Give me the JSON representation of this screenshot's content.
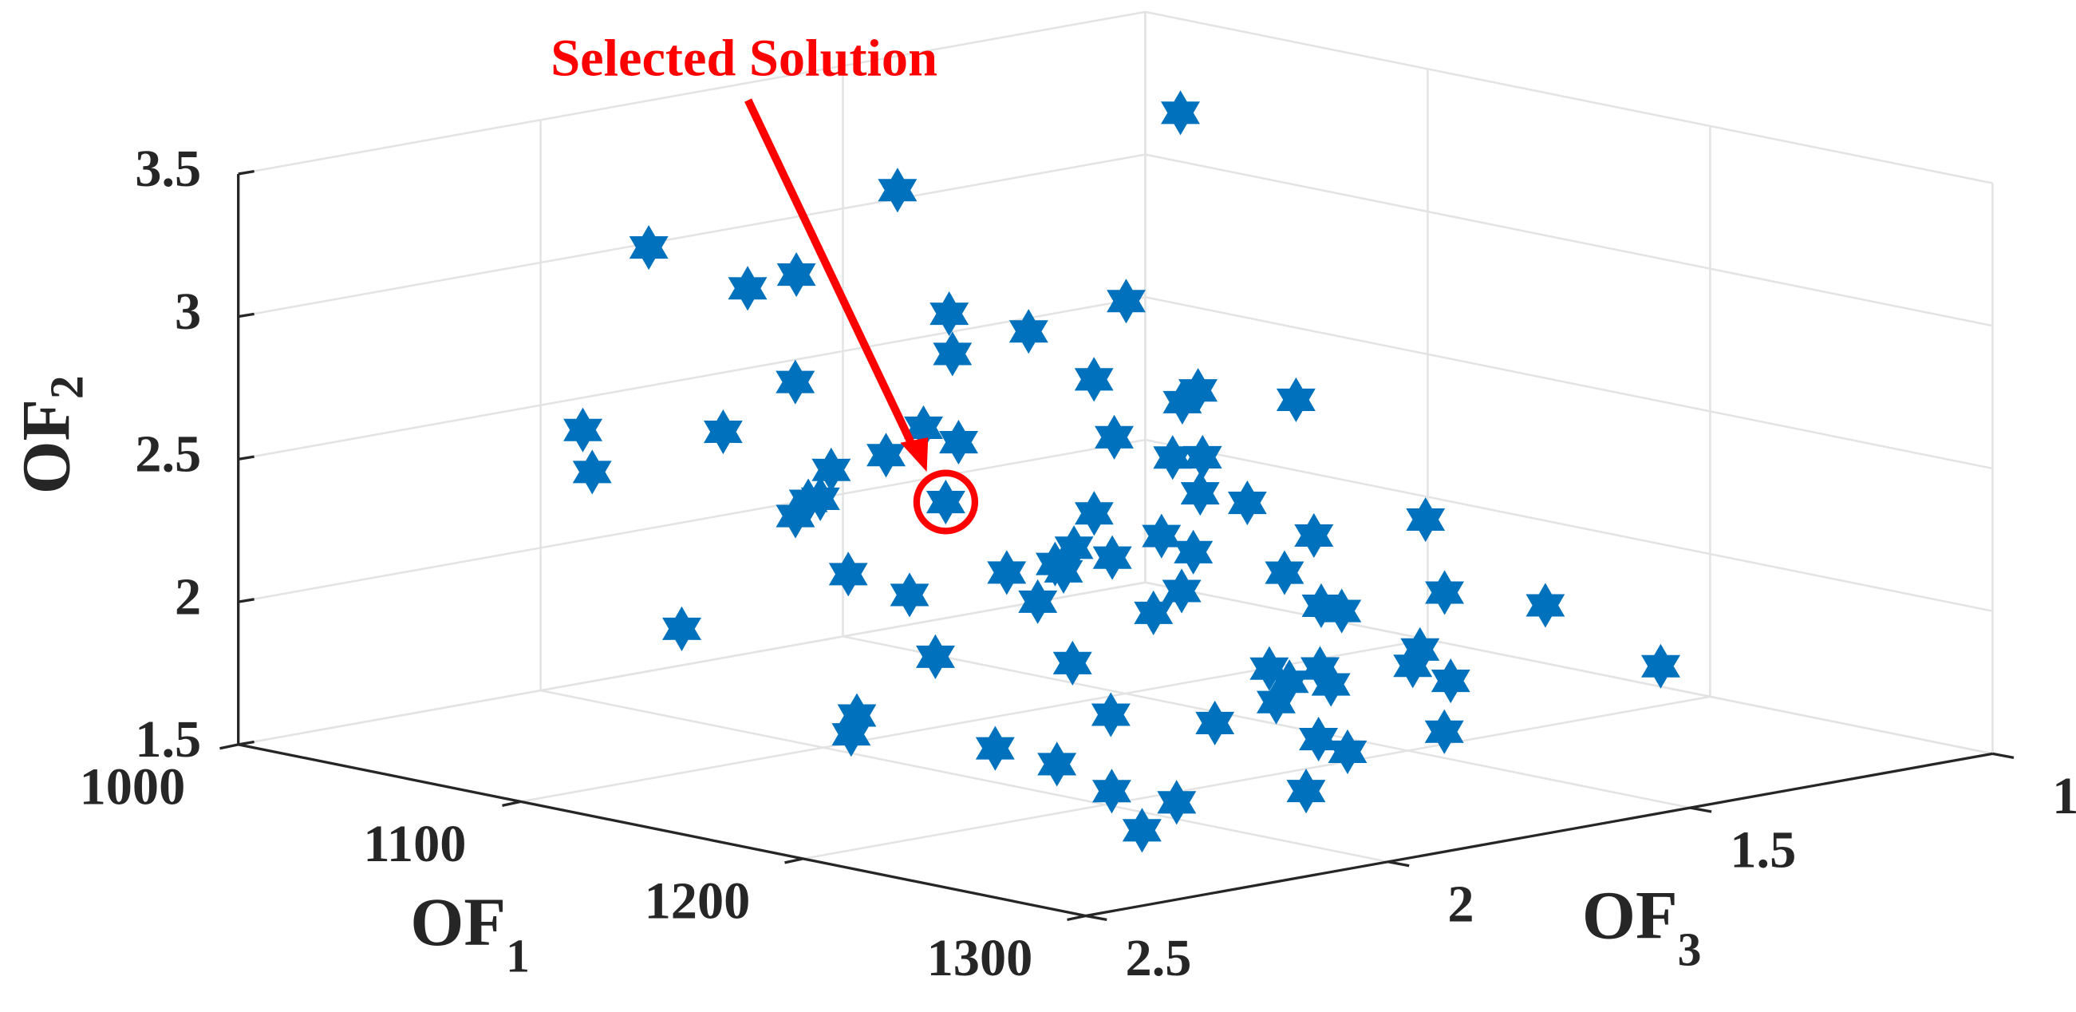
{
  "chart_data": {
    "type": "scatter3d",
    "xlabel": {
      "main": "OF",
      "sub": "1"
    },
    "ylabel": {
      "main": "OF",
      "sub": "2"
    },
    "zlabel": {
      "main": "OF",
      "sub": "3"
    },
    "xlim": [
      1000,
      1300
    ],
    "xticks": [
      1000,
      1100,
      1200,
      1300
    ],
    "ylim": [
      1.5,
      3.5
    ],
    "yticks": [
      1.5,
      2,
      2.5,
      3,
      3.5
    ],
    "zlim": [
      1,
      2.5
    ],
    "zticks": [
      1,
      1.5,
      2,
      2.5
    ],
    "grid": true,
    "color": "#0072bd",
    "annotation": {
      "text": "Selected Solution",
      "color": "#ff0000",
      "x": 1152,
      "y": 2.48,
      "z": 2.04
    },
    "x": [
      1036,
      1045,
      1049,
      1067,
      1069,
      1089,
      1096,
      1100,
      1103,
      1103,
      1121,
      1130,
      1133,
      1139,
      1107,
      1116,
      1127,
      1133,
      1141,
      1121,
      1135,
      1133,
      1151,
      1153,
      1144,
      1144,
      1152,
      1165,
      1171,
      1148,
      1166,
      1187,
      1177,
      1186,
      1184,
      1176,
      1181,
      1180,
      1180,
      1183,
      1171,
      1197,
      1182,
      1191,
      1197,
      1213,
      1202,
      1210,
      1213,
      1223,
      1157,
      1204,
      1214,
      1230,
      1236,
      1251,
      1228,
      1231,
      1233,
      1237,
      1243,
      1239,
      1234,
      1243,
      1219,
      1217,
      1260,
      1238,
      1254,
      1260,
      1247,
      1260,
      1268,
      1271,
      1275
    ],
    "y": [
      3.26,
      3.2,
      3.17,
      3.05,
      3.04,
      2.9,
      2.86,
      2.83,
      2.81,
      2.81,
      2.7,
      2.63,
      2.61,
      2.57,
      2.79,
      2.73,
      2.66,
      2.61,
      2.56,
      2.69,
      2.6,
      2.61,
      2.49,
      2.48,
      2.54,
      2.54,
      2.48,
      2.4,
      2.36,
      2.51,
      2.4,
      2.25,
      2.32,
      2.26,
      2.27,
      2.33,
      2.29,
      2.3,
      2.3,
      2.28,
      2.36,
      2.19,
      2.29,
      2.22,
      2.19,
      2.08,
      2.15,
      2.1,
      2.08,
      2.01,
      2.22,
      2.14,
      2.07,
      1.96,
      1.93,
      1.83,
      1.98,
      1.96,
      1.94,
      1.92,
      1.88,
      1.9,
      1.94,
      1.88,
      2.04,
      1.97,
      1.77,
      1.91,
      1.8,
      1.76,
      1.85,
      1.77,
      1.72,
      1.69,
      1.67
    ],
    "z": [
      1.11,
      1.62,
      2.05,
      1.89,
      1.98,
      1.74,
      1.48,
      1.66,
      1.8,
      2.06,
      1.65,
      1.52,
      1.56,
      1.4,
      2.43,
      2.24,
      1.96,
      1.93,
      1.71,
      2.48,
      2.15,
      2.05,
      1.66,
      1.62,
      2.21,
      2.23,
      2.04,
      1.68,
      1.63,
      2.27,
      1.86,
      1.41,
      1.8,
      1.59,
      1.78,
      1.94,
      1.9,
      2.07,
      1.99,
      1.99,
      2.29,
      1.69,
      2.24,
      2.07,
      1.86,
      1.5,
      1.93,
      1.69,
      1.67,
      1.38,
      2.5,
      2.3,
      2.12,
      1.62,
      1.66,
      1.32,
      1.86,
      1.79,
      1.85,
      1.8,
      1.63,
      1.9,
      2.15,
      2.02,
      2.5,
      2.5,
      1.72,
      2.36,
      1.9,
      1.88,
      2.3,
      2.27,
      2.2,
      2,
      2.29
    ]
  }
}
